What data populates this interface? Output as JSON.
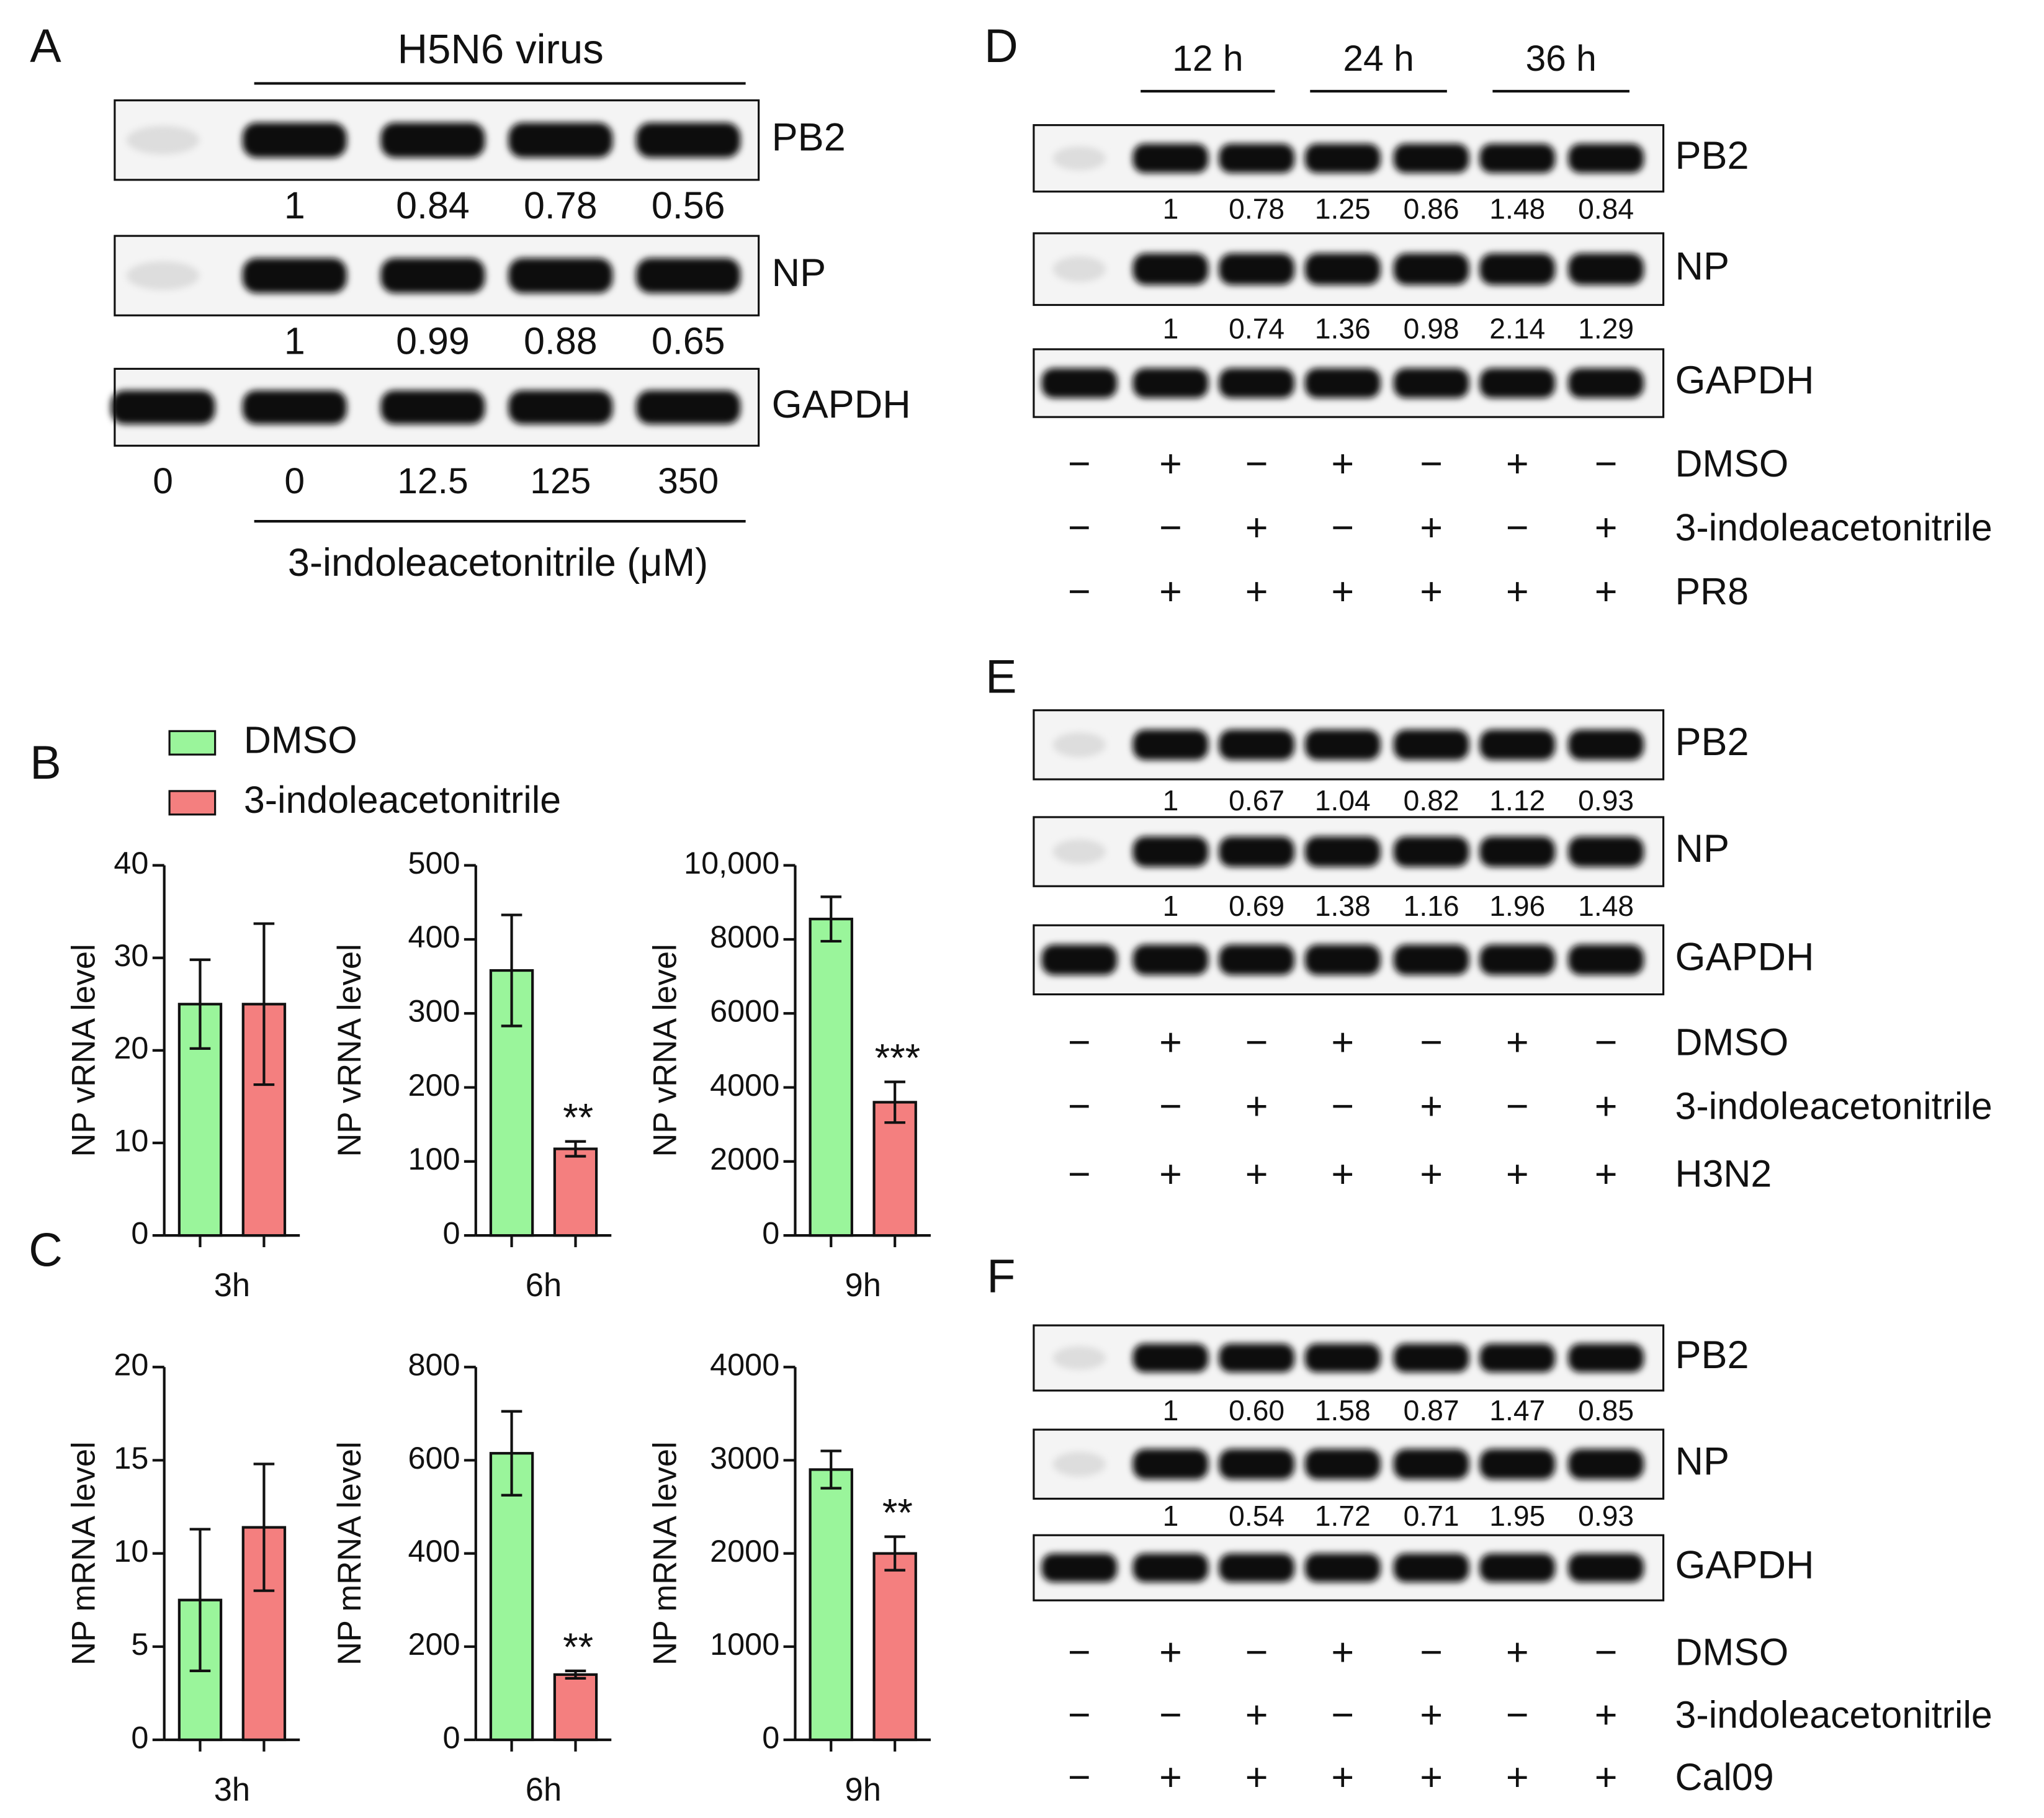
{
  "bar_panels": [
    "B",
    "C"
  ],
  "chart_data": [
    {
      "type": "bar",
      "categories": [
        "3h"
      ],
      "ylabel": "NP vRNA level",
      "ylim": [
        0,
        40
      ],
      "yticks": [
        0,
        10,
        20,
        30,
        40
      ],
      "series": [
        {
          "name": "DMSO",
          "color": "#9af59b",
          "values": [
            25
          ],
          "errors": [
            4.8
          ],
          "significance": [
            null
          ]
        },
        {
          "name": "3-indoleacetonitrile",
          "color": "#f47f7f",
          "values": [
            25
          ],
          "errors": [
            8.7
          ],
          "significance": [
            null
          ]
        }
      ]
    },
    {
      "type": "bar",
      "categories": [
        "6h"
      ],
      "ylabel": "NP vRNA level",
      "ylim": [
        0,
        500
      ],
      "yticks": [
        0,
        100,
        200,
        300,
        400,
        500
      ],
      "series": [
        {
          "color": "#9af59b",
          "values": [
            358
          ],
          "errors": [
            75
          ],
          "significance": [
            null
          ]
        },
        {
          "color": "#f47f7f",
          "values": [
            117
          ],
          "errors": [
            10
          ],
          "significance": [
            "**"
          ]
        }
      ]
    },
    {
      "type": "bar",
      "categories": [
        "9h"
      ],
      "ylabel": "NP vRNA level",
      "ylim": [
        0,
        10000
      ],
      "yticks": [
        0,
        2000,
        4000,
        6000,
        8000,
        {
          "value": 10000,
          "label": "10,000"
        }
      ],
      "series": [
        {
          "color": "#9af59b",
          "values": [
            8550
          ],
          "errors": [
            600
          ],
          "significance": [
            null
          ]
        },
        {
          "color": "#f47f7f",
          "values": [
            3600
          ],
          "errors": [
            550
          ],
          "significance": [
            "***"
          ]
        }
      ]
    },
    {
      "type": "bar",
      "categories": [
        "3h"
      ],
      "ylabel": "NP mRNA level",
      "ylim": [
        0,
        20
      ],
      "yticks": [
        0,
        5,
        10,
        15,
        20
      ],
      "series": [
        {
          "color": "#9af59b",
          "values": [
            7.5
          ],
          "errors": [
            3.8
          ],
          "significance": [
            null
          ]
        },
        {
          "color": "#f47f7f",
          "values": [
            11.4
          ],
          "errors": [
            3.4
          ],
          "significance": [
            null
          ]
        }
      ]
    },
    {
      "type": "bar",
      "categories": [
        "6h"
      ],
      "ylabel": "NP mRNA level",
      "ylim": [
        0,
        800
      ],
      "yticks": [
        0,
        200,
        400,
        600,
        800
      ],
      "series": [
        {
          "color": "#9af59b",
          "values": [
            615
          ],
          "errors": [
            90
          ],
          "significance": [
            null
          ]
        },
        {
          "color": "#f47f7f",
          "values": [
            140
          ],
          "errors": [
            8
          ],
          "significance": [
            "**"
          ]
        }
      ]
    },
    {
      "type": "bar",
      "categories": [
        "9h"
      ],
      "ylabel": "NP mRNA level",
      "ylim": [
        0,
        4000
      ],
      "yticks": [
        0,
        1000,
        2000,
        3000,
        4000
      ],
      "series": [
        {
          "color": "#9af59b",
          "values": [
            2900
          ],
          "errors": [
            200
          ],
          "significance": [
            null
          ]
        },
        {
          "color": "#f47f7f",
          "values": [
            2000
          ],
          "errors": [
            180
          ],
          "significance": [
            "**"
          ]
        }
      ]
    }
  ],
  "blots": [
    {
      "label": "A",
      "header": "H5N6 virus",
      "bands": [
        {
          "label": "PB2",
          "quant": [
            "1",
            "0.84",
            "0.78",
            "0.56"
          ]
        },
        {
          "label": "NP",
          "quant": [
            "1",
            "0.99",
            "0.88",
            "0.65"
          ]
        },
        {
          "label": "GAPDH"
        }
      ],
      "lane_labels": [
        "0",
        "0",
        "12.5",
        "125",
        "350"
      ],
      "xlabel": "3-indoleacetonitrile (μM)"
    },
    {
      "label": "D",
      "time_labels": [
        "12 h",
        "24 h",
        "36 h"
      ],
      "bands": [
        {
          "label": "PB2",
          "quant": [
            "1",
            "0.78",
            "1.25",
            "0.86",
            "1.48",
            "0.84"
          ]
        },
        {
          "label": "NP",
          "quant": [
            "1",
            "0.74",
            "1.36",
            "0.98",
            "2.14",
            "1.29"
          ]
        },
        {
          "label": "GAPDH"
        }
      ],
      "treatments": [
        {
          "label": "DMSO",
          "signs": [
            "−",
            "+",
            "−",
            "+",
            "−",
            "+",
            "−"
          ]
        },
        {
          "label": "3-indoleacetonitrile",
          "signs": [
            "−",
            "−",
            "+",
            "−",
            "+",
            "−",
            "+"
          ]
        },
        {
          "label": "PR8",
          "signs": [
            "−",
            "+",
            "+",
            "+",
            "+",
            "+",
            "+"
          ]
        }
      ]
    },
    {
      "label": "E",
      "bands": [
        {
          "label": "PB2",
          "quant": [
            "1",
            "0.67",
            "1.04",
            "0.82",
            "1.12",
            "0.93"
          ]
        },
        {
          "label": "NP",
          "quant": [
            "1",
            "0.69",
            "1.38",
            "1.16",
            "1.96",
            "1.48"
          ]
        },
        {
          "label": "GAPDH"
        }
      ],
      "treatments": [
        {
          "label": "DMSO",
          "signs": [
            "−",
            "+",
            "−",
            "+",
            "−",
            "+",
            "−"
          ]
        },
        {
          "label": "3-indoleacetonitrile",
          "signs": [
            "−",
            "−",
            "+",
            "−",
            "+",
            "−",
            "+"
          ]
        },
        {
          "label": "H3N2",
          "signs": [
            "−",
            "+",
            "+",
            "+",
            "+",
            "+",
            "+"
          ]
        }
      ]
    },
    {
      "label": "F",
      "bands": [
        {
          "label": "PB2",
          "quant": [
            "1",
            "0.60",
            "1.58",
            "0.87",
            "1.47",
            "0.85"
          ]
        },
        {
          "label": "NP",
          "quant": [
            "1",
            "0.54",
            "1.72",
            "0.71",
            "1.95",
            "0.93"
          ]
        },
        {
          "label": "GAPDH"
        }
      ],
      "treatments": [
        {
          "label": "DMSO",
          "signs": [
            "−",
            "+",
            "−",
            "+",
            "−",
            "+",
            "−"
          ]
        },
        {
          "label": "3-indoleacetonitrile",
          "signs": [
            "−",
            "−",
            "+",
            "−",
            "+",
            "−",
            "+"
          ]
        },
        {
          "label": "Cal09",
          "signs": [
            "−",
            "+",
            "+",
            "+",
            "+",
            "+",
            "+"
          ]
        }
      ]
    }
  ]
}
